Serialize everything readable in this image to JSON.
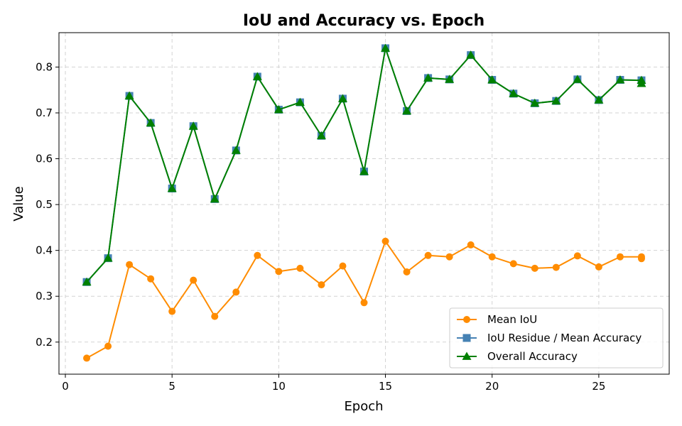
{
  "chart_data": {
    "type": "line",
    "title": "IoU and Accuracy vs. Epoch",
    "xlabel": "Epoch",
    "ylabel": "Value",
    "xlim": [
      -0.3,
      28.3
    ],
    "ylim": [
      0.13,
      0.875
    ],
    "xticks": [
      0,
      5,
      10,
      15,
      20,
      25
    ],
    "yticks": [
      0.2,
      0.3,
      0.4,
      0.5,
      0.6,
      0.7,
      0.8
    ],
    "grid": true,
    "legend_position": "bottom-right",
    "x": [
      1,
      2,
      3,
      4,
      5,
      6,
      7,
      8,
      9,
      10,
      11,
      12,
      13,
      14,
      15,
      16,
      17,
      18,
      19,
      20,
      21,
      22,
      23,
      24,
      25,
      26,
      27
    ],
    "series": [
      {
        "name": "Mean IoU",
        "color": "#ff8c00",
        "marker": "circle",
        "values": [
          0.165,
          0.191,
          0.369,
          0.338,
          0.267,
          0.335,
          0.256,
          0.309,
          0.389,
          0.354,
          0.361,
          0.325,
          0.366,
          0.286,
          0.42,
          0.353,
          0.389,
          0.386,
          0.412,
          0.386,
          0.371,
          0.361,
          0.363,
          0.388,
          0.364,
          0.386,
          0.386
        ],
        "last_point_extra": 0.382
      },
      {
        "name": "IoU Residue / Mean Accuracy",
        "color": "#4682b4",
        "marker": "square",
        "values": [
          0.331,
          0.383,
          0.737,
          0.678,
          0.535,
          0.671,
          0.512,
          0.618,
          0.779,
          0.707,
          0.723,
          0.65,
          0.731,
          0.572,
          0.841,
          0.704,
          0.776,
          0.773,
          0.826,
          0.772,
          0.742,
          0.721,
          0.726,
          0.773,
          0.728,
          0.772,
          0.771
        ]
      },
      {
        "name": "Overall Accuracy",
        "color": "#008000",
        "marker": "triangle",
        "values": [
          0.331,
          0.383,
          0.737,
          0.678,
          0.535,
          0.671,
          0.512,
          0.618,
          0.779,
          0.707,
          0.723,
          0.65,
          0.731,
          0.572,
          0.841,
          0.704,
          0.776,
          0.773,
          0.826,
          0.772,
          0.742,
          0.721,
          0.726,
          0.773,
          0.728,
          0.772,
          0.771
        ],
        "last_point_extra": 0.764
      }
    ]
  }
}
